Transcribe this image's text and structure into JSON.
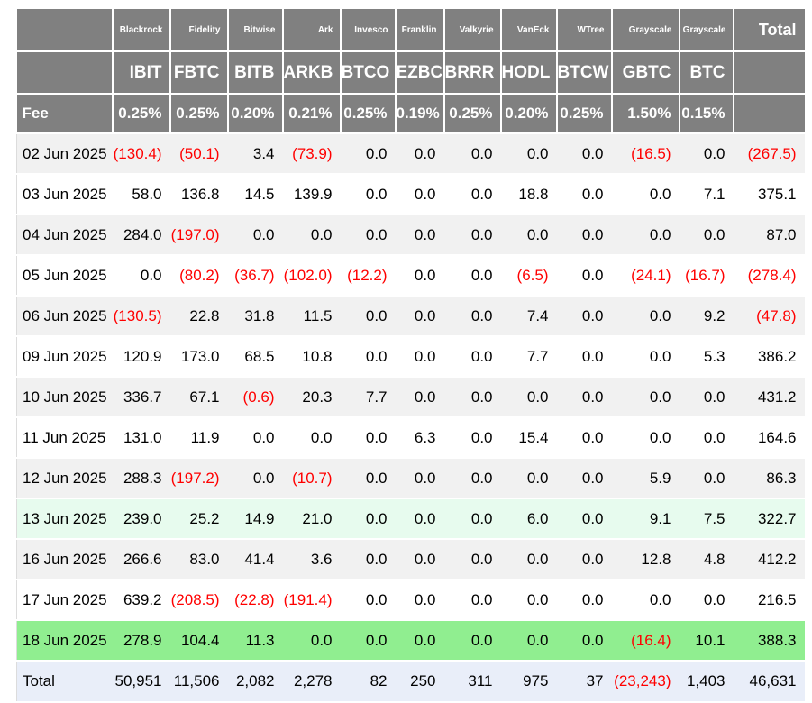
{
  "chart_data": {
    "type": "table",
    "negative_format": "parentheses-red",
    "corner": {
      "fee_label": "Fee",
      "total_label": "Total",
      "total_row_label": "Total"
    },
    "columns": [
      {
        "provider": "Blackrock",
        "ticker": "IBIT",
        "fee": "0.25%"
      },
      {
        "provider": "Fidelity",
        "ticker": "FBTC",
        "fee": "0.25%"
      },
      {
        "provider": "Bitwise",
        "ticker": "BITB",
        "fee": "0.20%"
      },
      {
        "provider": "Ark",
        "ticker": "ARKB",
        "fee": "0.21%"
      },
      {
        "provider": "Invesco",
        "ticker": "BTCO",
        "fee": "0.25%"
      },
      {
        "provider": "Franklin",
        "ticker": "EZBC",
        "fee": "0.19%"
      },
      {
        "provider": "Valkyrie",
        "ticker": "BRRR",
        "fee": "0.25%"
      },
      {
        "provider": "VanEck",
        "ticker": "HODL",
        "fee": "0.20%"
      },
      {
        "provider": "WTree",
        "ticker": "BTCW",
        "fee": "0.25%"
      },
      {
        "provider": "Grayscale",
        "ticker": "GBTC",
        "fee": "1.50%"
      },
      {
        "provider": "Grayscale",
        "ticker": "BTC",
        "fee": "0.15%"
      }
    ],
    "rows": [
      {
        "date": "02 Jun 2025",
        "values": [
          "(130.4)",
          "(50.1)",
          "3.4",
          "(73.9)",
          "0.0",
          "0.0",
          "0.0",
          "0.0",
          "0.0",
          "(16.5)",
          "0.0"
        ],
        "total": "(267.5)"
      },
      {
        "date": "03 Jun 2025",
        "values": [
          "58.0",
          "136.8",
          "14.5",
          "139.9",
          "0.0",
          "0.0",
          "0.0",
          "18.8",
          "0.0",
          "0.0",
          "7.1"
        ],
        "total": "375.1"
      },
      {
        "date": "04 Jun 2025",
        "values": [
          "284.0",
          "(197.0)",
          "0.0",
          "0.0",
          "0.0",
          "0.0",
          "0.0",
          "0.0",
          "0.0",
          "0.0",
          "0.0"
        ],
        "total": "87.0"
      },
      {
        "date": "05 Jun 2025",
        "values": [
          "0.0",
          "(80.2)",
          "(36.7)",
          "(102.0)",
          "(12.2)",
          "0.0",
          "0.0",
          "(6.5)",
          "0.0",
          "(24.1)",
          "(16.7)"
        ],
        "total": "(278.4)"
      },
      {
        "date": "06 Jun 2025",
        "values": [
          "(130.5)",
          "22.8",
          "31.8",
          "11.5",
          "0.0",
          "0.0",
          "0.0",
          "7.4",
          "0.0",
          "0.0",
          "9.2"
        ],
        "total": "(47.8)"
      },
      {
        "date": "09 Jun 2025",
        "values": [
          "120.9",
          "173.0",
          "68.5",
          "10.8",
          "0.0",
          "0.0",
          "0.0",
          "7.7",
          "0.0",
          "0.0",
          "5.3"
        ],
        "total": "386.2"
      },
      {
        "date": "10 Jun 2025",
        "values": [
          "336.7",
          "67.1",
          "(0.6)",
          "20.3",
          "7.7",
          "0.0",
          "0.0",
          "0.0",
          "0.0",
          "0.0",
          "0.0"
        ],
        "total": "431.2"
      },
      {
        "date": "11 Jun 2025",
        "values": [
          "131.0",
          "11.9",
          "0.0",
          "0.0",
          "0.0",
          "6.3",
          "0.0",
          "15.4",
          "0.0",
          "0.0",
          "0.0"
        ],
        "total": "164.6"
      },
      {
        "date": "12 Jun 2025",
        "values": [
          "288.3",
          "(197.2)",
          "0.0",
          "(10.7)",
          "0.0",
          "0.0",
          "0.0",
          "0.0",
          "0.0",
          "5.9",
          "0.0"
        ],
        "total": "86.3"
      },
      {
        "date": "13 Jun 2025",
        "values": [
          "239.0",
          "25.2",
          "14.9",
          "21.0",
          "0.0",
          "0.0",
          "0.0",
          "6.0",
          "0.0",
          "9.1",
          "7.5"
        ],
        "total": "322.7",
        "highlight": "mint"
      },
      {
        "date": "16 Jun 2025",
        "values": [
          "266.6",
          "83.0",
          "41.4",
          "3.6",
          "0.0",
          "0.0",
          "0.0",
          "0.0",
          "0.0",
          "12.8",
          "4.8"
        ],
        "total": "412.2"
      },
      {
        "date": "17 Jun 2025",
        "values": [
          "639.2",
          "(208.5)",
          "(22.8)",
          "(191.4)",
          "0.0",
          "0.0",
          "0.0",
          "0.0",
          "0.0",
          "0.0",
          "0.0"
        ],
        "total": "216.5"
      },
      {
        "date": "18 Jun 2025",
        "values": [
          "278.9",
          "104.4",
          "11.3",
          "0.0",
          "0.0",
          "0.0",
          "0.0",
          "0.0",
          "0.0",
          "(16.4)",
          "10.1"
        ],
        "total": "388.3",
        "highlight": "green"
      }
    ],
    "total_row": {
      "label": "Total",
      "values": [
        "50,951",
        "11,506",
        "2,082",
        "2,278",
        "82",
        "250",
        "311",
        "975",
        "37",
        "(23,243)",
        "1,403"
      ],
      "total": "46,631"
    }
  },
  "colors": {
    "header_bg": "#808080",
    "header_text": "#ffffff",
    "negative_text": "#ff0000",
    "row_alt_bg": "#f1f1f1",
    "row_highlight_mint": "#e7fbee",
    "row_highlight_green": "#90ee90",
    "total_row_bg": "#e9eef9"
  }
}
